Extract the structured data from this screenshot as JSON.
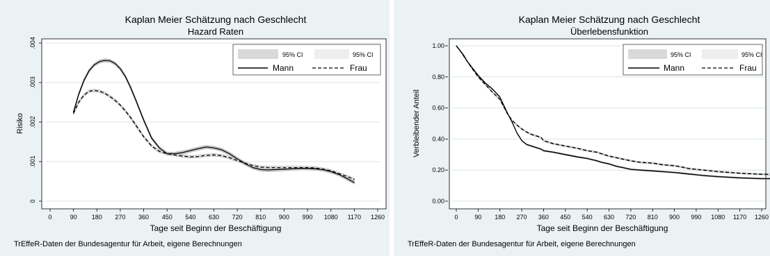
{
  "charts": [
    {
      "title": "Kaplan Meier Schätzung nach Geschlecht",
      "subtitle": "Hazard Raten",
      "caption": "TrEffeR-Daten der Bundesagentur für Arbeit, eigene Berechnungen",
      "legend": {
        "ci_label_left": "95% CI",
        "ci_label_right": "95% CI",
        "series_1": "Mann",
        "series_2": "Frau"
      }
    },
    {
      "title": "Kaplan Meier Schätzung nach Geschlecht",
      "subtitle": "Überlebensfunktion",
      "caption": "TrEffeR-Daten der Bundesagentur für Arbeit, eigene Berechnungen",
      "legend": {
        "ci_label_left": "95% CI",
        "ci_label_right": "95% CI",
        "series_1": "Mann",
        "series_2": "Frau"
      }
    }
  ],
  "chart_data": [
    {
      "type": "line",
      "title": "Kaplan Meier Schätzung nach Geschlecht",
      "subtitle": "Hazard Raten",
      "xlabel": "Tage seit Beginn der Beschäftigung",
      "ylabel": "Risiko",
      "xlim": [
        0,
        1260
      ],
      "ylim": [
        0,
        0.004
      ],
      "xticks": [
        0,
        90,
        180,
        270,
        360,
        450,
        540,
        630,
        720,
        810,
        900,
        990,
        1080,
        1170,
        1260
      ],
      "yticks": [
        0,
        0.001,
        0.002,
        0.003,
        0.004
      ],
      "yticklabels": [
        "0",
        ".001",
        ".002",
        ".003",
        ".004"
      ],
      "legend_position": "top-right",
      "grid": true,
      "series": [
        {
          "name": "Mann",
          "style": "solid",
          "x": [
            90,
            110,
            130,
            150,
            170,
            190,
            210,
            230,
            250,
            270,
            290,
            310,
            330,
            360,
            390,
            420,
            450,
            480,
            510,
            540,
            570,
            600,
            630,
            660,
            690,
            720,
            750,
            780,
            810,
            840,
            870,
            900,
            930,
            960,
            990,
            1020,
            1050,
            1080,
            1110,
            1140,
            1170
          ],
          "y": [
            0.00225,
            0.0027,
            0.00305,
            0.0033,
            0.00345,
            0.00353,
            0.00356,
            0.00355,
            0.00348,
            0.00335,
            0.00315,
            0.00287,
            0.00255,
            0.00205,
            0.0016,
            0.00135,
            0.0012,
            0.0012,
            0.00123,
            0.00128,
            0.00133,
            0.00137,
            0.00135,
            0.0013,
            0.0012,
            0.00107,
            0.00095,
            0.00085,
            0.0008,
            0.00079,
            0.0008,
            0.00081,
            0.00082,
            0.00083,
            0.00083,
            0.00082,
            0.0008,
            0.00075,
            0.00068,
            0.00058,
            0.00047
          ],
          "ci_band_width": 4e-05
        },
        {
          "name": "Frau",
          "style": "dashed",
          "x": [
            90,
            110,
            130,
            150,
            170,
            190,
            210,
            230,
            250,
            270,
            290,
            310,
            330,
            360,
            390,
            420,
            450,
            480,
            510,
            540,
            570,
            600,
            630,
            660,
            690,
            720,
            750,
            780,
            810,
            840,
            870,
            900,
            930,
            960,
            990,
            1020,
            1050,
            1080,
            1110,
            1140,
            1170
          ],
          "y": [
            0.00222,
            0.0025,
            0.00268,
            0.00278,
            0.0028,
            0.00278,
            0.00273,
            0.00265,
            0.00255,
            0.00243,
            0.00228,
            0.00211,
            0.00192,
            0.00163,
            0.0014,
            0.00126,
            0.0012,
            0.00117,
            0.00114,
            0.00112,
            0.00113,
            0.00116,
            0.00117,
            0.00115,
            0.0011,
            0.00103,
            0.00096,
            0.0009,
            0.00086,
            0.00085,
            0.00085,
            0.00085,
            0.00085,
            0.00085,
            0.00085,
            0.00084,
            0.00081,
            0.00077,
            0.0007,
            0.00063,
            0.00055
          ],
          "ci_band_width": 3e-05
        }
      ]
    },
    {
      "type": "line",
      "title": "Kaplan Meier Schätzung nach Geschlecht",
      "subtitle": "Überlebensfunktion",
      "xlabel": "Tage seit Beginn der Beschäftigung",
      "ylabel": "Verbleibender Anteil",
      "xlim": [
        0,
        1260
      ],
      "ylim": [
        0,
        1
      ],
      "xticks": [
        0,
        90,
        180,
        270,
        360,
        450,
        540,
        630,
        720,
        810,
        900,
        990,
        1080,
        1170,
        1260
      ],
      "yticks": [
        0,
        0.2,
        0.4,
        0.6,
        0.8,
        1
      ],
      "yticklabels": [
        "0.00",
        "0.20",
        "0.40",
        "0.60",
        "0.80",
        "1.00"
      ],
      "legend_position": "top-right",
      "grid": true,
      "series": [
        {
          "name": "Mann",
          "style": "solid",
          "x": [
            0,
            15,
            30,
            45,
            60,
            90,
            120,
            150,
            180,
            195,
            210,
            230,
            250,
            270,
            290,
            310,
            330,
            350,
            360,
            380,
            400,
            450,
            500,
            540,
            580,
            600,
            630,
            660,
            690,
            720,
            760,
            810,
            850,
            900,
            930,
            960,
            990,
            1020,
            1080,
            1170,
            1260,
            1340
          ],
          "y": [
            1.0,
            0.97,
            0.94,
            0.9,
            0.87,
            0.81,
            0.76,
            0.72,
            0.67,
            0.62,
            0.57,
            0.51,
            0.44,
            0.39,
            0.365,
            0.355,
            0.345,
            0.335,
            0.325,
            0.32,
            0.315,
            0.3,
            0.285,
            0.275,
            0.26,
            0.25,
            0.24,
            0.225,
            0.215,
            0.205,
            0.2,
            0.195,
            0.19,
            0.185,
            0.18,
            0.175,
            0.17,
            0.165,
            0.158,
            0.15,
            0.145,
            0.145
          ],
          "ci_band_width": 0.004
        },
        {
          "name": "Frau",
          "style": "dashed",
          "x": [
            0,
            15,
            30,
            45,
            60,
            90,
            120,
            150,
            180,
            195,
            210,
            230,
            250,
            270,
            290,
            310,
            330,
            350,
            360,
            380,
            400,
            450,
            500,
            540,
            580,
            600,
            630,
            660,
            690,
            720,
            760,
            810,
            850,
            900,
            930,
            960,
            990,
            1020,
            1080,
            1170,
            1260,
            1340
          ],
          "y": [
            1.0,
            0.97,
            0.935,
            0.9,
            0.865,
            0.8,
            0.75,
            0.7,
            0.655,
            0.61,
            0.565,
            0.52,
            0.49,
            0.465,
            0.445,
            0.43,
            0.42,
            0.41,
            0.39,
            0.38,
            0.37,
            0.355,
            0.34,
            0.325,
            0.315,
            0.305,
            0.29,
            0.28,
            0.27,
            0.26,
            0.25,
            0.245,
            0.235,
            0.228,
            0.22,
            0.21,
            0.205,
            0.2,
            0.19,
            0.18,
            0.173,
            0.172
          ],
          "ci_band_width": 0.004
        }
      ]
    }
  ]
}
